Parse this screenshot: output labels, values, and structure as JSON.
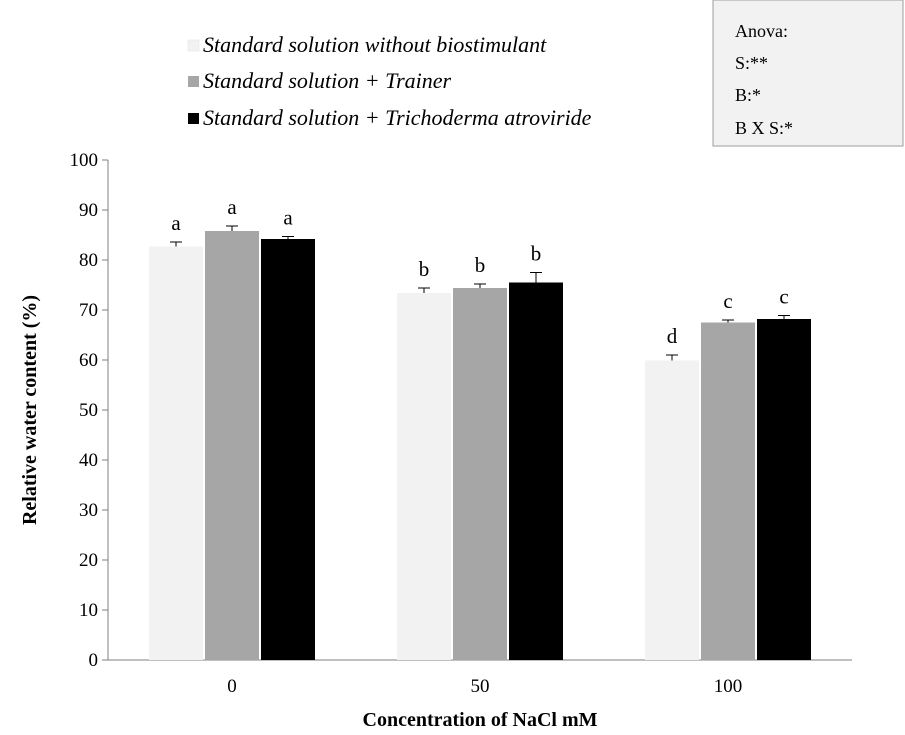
{
  "chart_data": {
    "type": "bar",
    "categories": [
      "0",
      "50",
      "100"
    ],
    "series": [
      {
        "name": "Standard solution without biostimulant",
        "color": "#f2f2f2",
        "values": [
          82.7,
          73.4,
          59.9
        ],
        "errors": [
          0.9,
          1.0,
          1.1
        ],
        "letters": [
          "a",
          "b",
          "d"
        ]
      },
      {
        "name": "Standard solution + Trainer",
        "color": "#a6a6a6",
        "values": [
          85.8,
          74.4,
          67.5
        ],
        "errors": [
          1.0,
          0.8,
          0.5
        ],
        "letters": [
          "a",
          "b",
          "c"
        ]
      },
      {
        "name": "Standard solution + Trichoderma atroviride",
        "color": "#000000",
        "values": [
          84.2,
          75.5,
          68.2
        ],
        "errors": [
          0.5,
          2.0,
          0.7
        ],
        "letters": [
          "a",
          "b",
          "c"
        ]
      }
    ],
    "xlabel": "Concentration of NaCl mM",
    "ylabel": "Relative water content (%)",
    "ylim": [
      0,
      100
    ],
    "yticks": [
      0,
      10,
      20,
      30,
      40,
      50,
      60,
      70,
      80,
      90,
      100
    ],
    "grid": false,
    "legend_position": "top-left",
    "annotation": {
      "title": "Anova:",
      "lines": [
        "S:**",
        "B:*",
        "B X S:*"
      ]
    }
  }
}
